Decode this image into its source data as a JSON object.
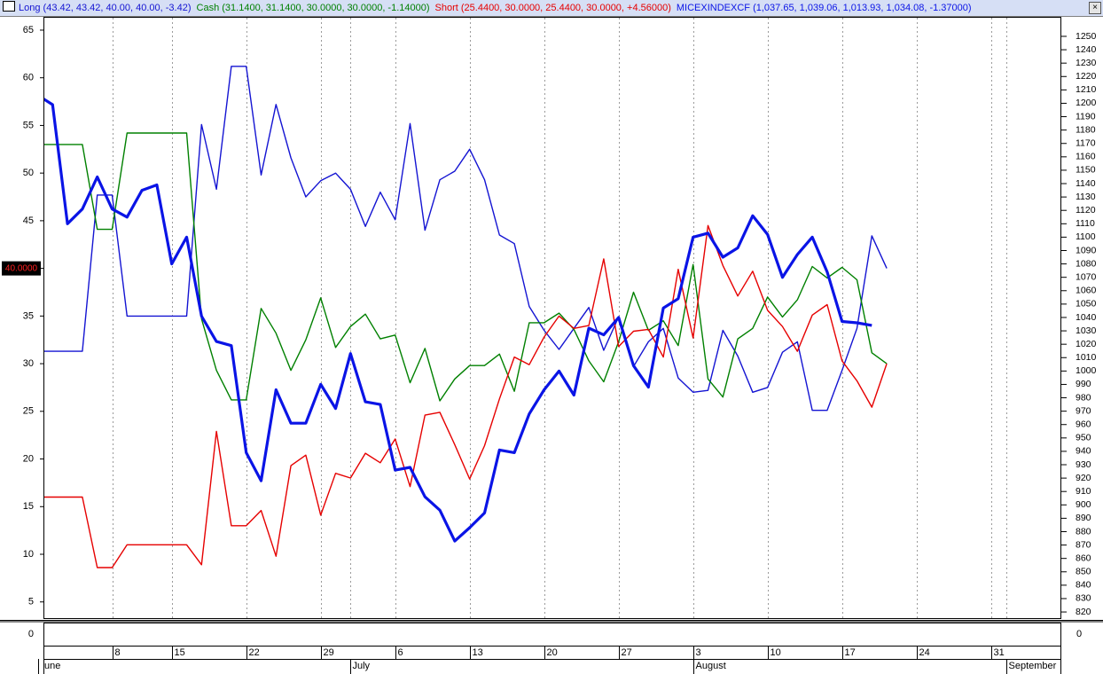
{
  "chart_data": {
    "type": "line",
    "categories": [
      null,
      null,
      null,
      null,
      null,
      "8",
      null,
      null,
      null,
      "15",
      null,
      null,
      null,
      null,
      "22",
      null,
      null,
      null,
      null,
      "29",
      null,
      null,
      null,
      null,
      "6",
      null,
      null,
      null,
      null,
      "13",
      null,
      null,
      null,
      null,
      "20",
      null,
      null,
      null,
      null,
      "27",
      null,
      null,
      null,
      null,
      "3",
      null,
      null,
      null,
      null,
      "10",
      null,
      null,
      null,
      null,
      "17",
      null,
      null,
      null,
      null,
      "24",
      null,
      null,
      null,
      null,
      "31",
      null,
      null,
      null,
      null
    ],
    "month_labels": [
      "une",
      null,
      null,
      null,
      null,
      null,
      null,
      null,
      null,
      null,
      null,
      null,
      null,
      null,
      null,
      null,
      null,
      null,
      null,
      null,
      null,
      "July",
      null,
      null,
      null,
      null,
      null,
      null,
      null,
      null,
      null,
      null,
      null,
      null,
      null,
      null,
      null,
      null,
      null,
      null,
      null,
      null,
      null,
      null,
      "August",
      null,
      null,
      null,
      null,
      null,
      null,
      null,
      null,
      null,
      null,
      null,
      null,
      null,
      null,
      null,
      null,
      null,
      null,
      null,
      null,
      "September",
      null,
      null,
      null
    ],
    "series": [
      {
        "name": "Long",
        "legend_text": "(43.42, 43.42, 40.00, 40.00, -3.42)",
        "color": "#1414d2",
        "line_width": 1.4,
        "values": [
          31.3,
          31.3,
          31.3,
          31.3,
          47.7,
          47.7,
          35,
          35,
          35,
          35,
          35,
          55.1,
          48.3,
          61.2,
          61.2,
          49.8,
          57.2,
          51.6,
          47.5,
          49.2,
          50,
          48.3,
          44.4,
          48,
          45.1,
          55.2,
          44,
          49.3,
          50.2,
          52.5,
          49.3,
          43.5,
          42.6,
          36,
          33.5,
          31.5,
          33.7,
          35.9,
          31.4,
          34.9,
          29.7,
          32.3,
          33.7,
          28.5,
          27,
          27.2,
          33.5,
          30.8,
          27,
          27.5,
          31.2,
          32.3,
          25.1,
          25.1,
          29.3,
          33.7,
          43.42,
          40,
          null,
          null,
          null,
          null,
          null,
          null,
          null,
          null,
          null,
          null,
          null
        ]
      },
      {
        "name": "Cash",
        "legend_text": "(31.1400, 31.1400, 30.0000, 30.0000, -1.14000)",
        "color": "#008000",
        "line_width": 1.4,
        "values": [
          53,
          53,
          53,
          53,
          44.1,
          44.1,
          54.2,
          54.2,
          54.2,
          54.2,
          54.2,
          34.7,
          29.3,
          26.2,
          26.2,
          35.8,
          33.2,
          29.3,
          32.5,
          36.9,
          31.7,
          33.9,
          35.2,
          32.6,
          33,
          28,
          31.6,
          26.1,
          28.4,
          29.8,
          29.8,
          31,
          27.1,
          34.3,
          34.3,
          35.3,
          33.6,
          30.3,
          28.1,
          32.3,
          37.5,
          33.5,
          34.5,
          31.9,
          40.4,
          28.4,
          26.5,
          32.6,
          33.7,
          37,
          34.9,
          36.7,
          40.2,
          39,
          40.1,
          38.8,
          31.14,
          30,
          null,
          null,
          null,
          null,
          null,
          null,
          null,
          null,
          null,
          null,
          null
        ]
      },
      {
        "name": "Short",
        "legend_text": "(25.4400, 30.0000, 25.4400, 30.0000, +4.56000)",
        "color": "#e60000",
        "line_width": 1.4,
        "values": [
          16,
          16,
          16,
          16,
          8.6,
          8.6,
          11,
          11,
          11,
          11,
          11,
          8.9,
          22.9,
          13,
          13,
          14.6,
          9.8,
          19.3,
          20.4,
          14.1,
          18.5,
          18,
          20.6,
          19.6,
          22.1,
          17.1,
          24.6,
          24.9,
          21.5,
          17.9,
          21.4,
          26.3,
          30.7,
          29.9,
          32.8,
          35,
          33.7,
          34,
          41,
          31.8,
          33.4,
          33.6,
          30.7,
          39.9,
          32.7,
          44.5,
          40.3,
          37.1,
          39.7,
          35.6,
          33.9,
          31.3,
          35.1,
          36.2,
          30.3,
          28.2,
          25.44,
          30,
          null,
          null,
          null,
          null,
          null,
          null,
          null,
          null,
          null,
          null,
          null
        ]
      },
      {
        "name": "MICEXINDEXCF",
        "legend_text": "(1,037.65, 1,039.06, 1,013.93, 1,034.08, -1.37000)",
        "color": "#0a14e6",
        "line_width": 3.2,
        "axis": "y2",
        "values": [
          1206,
          1199,
          1110,
          1121,
          1145,
          1121,
          1115,
          1135,
          1139,
          1080,
          1100,
          1041,
          1022,
          1019,
          939,
          918,
          986,
          961,
          961,
          990,
          972,
          1013,
          977,
          975,
          926,
          928,
          906,
          896,
          873,
          883,
          894,
          941,
          939,
          968,
          986,
          1000,
          982,
          1032,
          1027,
          1040,
          1004,
          988,
          1047,
          1054,
          1100,
          1103,
          1085,
          1092,
          1116,
          1102,
          1070,
          1087,
          1100,
          1074,
          1037,
          1036,
          1034.08,
          null,
          null,
          null,
          null,
          null,
          null,
          null,
          null,
          null,
          null,
          null,
          null
        ]
      }
    ],
    "ylim": [
      3.3,
      66.3
    ],
    "yticks": [
      5,
      10,
      15,
      20,
      25,
      30,
      35,
      40,
      45,
      50,
      55,
      60,
      65
    ],
    "y2lim": [
      815.4,
      1263.9
    ],
    "y2ticks": [
      820,
      830,
      840,
      850,
      860,
      870,
      880,
      890,
      900,
      910,
      920,
      930,
      940,
      950,
      960,
      970,
      980,
      990,
      1000,
      1010,
      1020,
      1030,
      1040,
      1050,
      1060,
      1070,
      1080,
      1090,
      1100,
      1110,
      1120,
      1130,
      1140,
      1150,
      1160,
      1170,
      1180,
      1190,
      1200,
      1210,
      1220,
      1230,
      1240,
      1250
    ],
    "last_value_marker": {
      "value": 40,
      "label": "40.0000"
    },
    "lower_panel_tick": 0,
    "vertical_grid": true
  }
}
